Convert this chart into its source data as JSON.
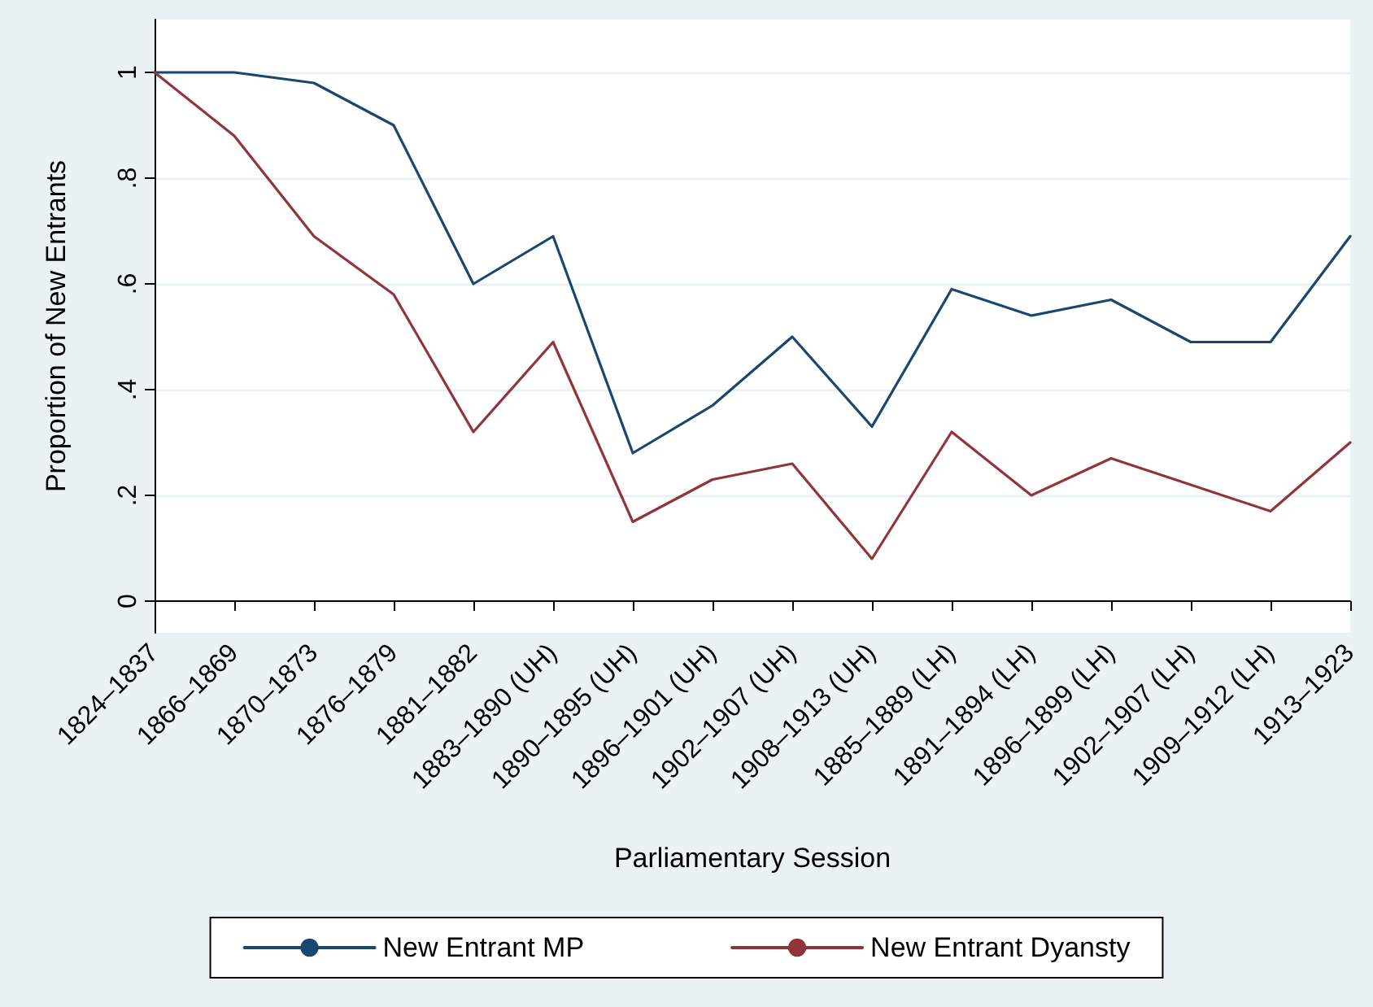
{
  "chart_data": {
    "type": "line",
    "xlabel": "Parliamentary Session",
    "ylabel": "Proportion of New Entrants",
    "categories": [
      "1824–1837",
      "1866–1869",
      "1870–1873",
      "1876–1879",
      "1881–1882",
      "1883–1890 (UH)",
      "1890–1895 (UH)",
      "1896–1901 (UH)",
      "1902–1907 (UH)",
      "1908–1913 (UH)",
      "1885–1889 (LH)",
      "1891–1894 (LH)",
      "1896–1899 (LH)",
      "1902–1907 (LH)",
      "1909–1912 (LH)",
      "1913–1923"
    ],
    "series": [
      {
        "name": "New Entrant MP",
        "color": "#1a476f",
        "values": [
          1,
          1,
          0.98,
          0.9,
          0.6,
          0.69,
          0.28,
          0.37,
          0.5,
          0.33,
          0.59,
          0.54,
          0.57,
          0.49,
          0.49,
          0.69
        ]
      },
      {
        "name": "New Entrant Dyansty",
        "color": "#90353b",
        "values": [
          1,
          0.88,
          0.69,
          0.58,
          0.32,
          0.49,
          0.15,
          0.23,
          0.26,
          0.08,
          0.32,
          0.2,
          0.27,
          0.22,
          0.17,
          0.3
        ]
      }
    ],
    "ylim": [
      -0.06,
      1.1
    ],
    "yticks": [
      0,
      {
        "value": 0.2,
        "label": ".2"
      },
      {
        "value": 0.4,
        "label": ".4"
      },
      {
        "value": 0.6,
        "label": ".6"
      },
      {
        "value": 0.8,
        "label": ".8"
      },
      1
    ],
    "grid": "y",
    "legend": "bottom",
    "marker": "none",
    "line_style": "solid"
  }
}
